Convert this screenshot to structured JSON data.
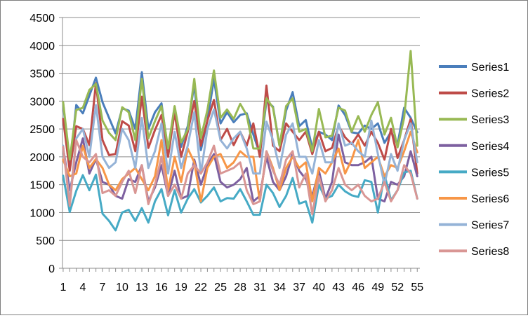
{
  "chart_data": {
    "type": "line",
    "title": "",
    "xlabel": "",
    "ylabel": "",
    "ylim": [
      0,
      4500
    ],
    "yticks": [
      0,
      500,
      1000,
      1500,
      2000,
      2500,
      3000,
      3500,
      4000,
      4500
    ],
    "x": [
      1,
      2,
      3,
      4,
      5,
      6,
      7,
      8,
      9,
      10,
      11,
      12,
      13,
      14,
      15,
      16,
      17,
      18,
      19,
      20,
      21,
      22,
      23,
      24,
      25,
      26,
      27,
      28,
      29,
      30,
      31,
      32,
      33,
      34,
      35,
      36,
      37,
      38,
      39,
      40,
      41,
      42,
      43,
      44,
      45,
      46,
      47,
      48,
      49,
      50,
      51,
      52,
      53,
      54,
      55
    ],
    "xtick_labels": [
      "1",
      "4",
      "7",
      "10",
      "13",
      "16",
      "19",
      "22",
      "25",
      "28",
      "31",
      "34",
      "37",
      "40",
      "43",
      "46",
      "49",
      "52",
      "55"
    ],
    "xtick_values": [
      1,
      4,
      7,
      10,
      13,
      16,
      19,
      22,
      25,
      28,
      31,
      34,
      37,
      40,
      43,
      46,
      49,
      52,
      55
    ],
    "grid": "horizontal",
    "legend": "right",
    "series": [
      {
        "name": "Series1",
        "color": "#4a7ebb",
        "values": [
          2970,
          1800,
          2930,
          2780,
          3100,
          3420,
          2980,
          2700,
          2420,
          2870,
          2830,
          2500,
          3520,
          2500,
          2800,
          2960,
          2100,
          2900,
          2180,
          2550,
          3300,
          2120,
          2650,
          3400,
          2600,
          2800,
          2620,
          2750,
          2780,
          2400,
          2050,
          3000,
          2900,
          2200,
          2830,
          3160,
          2550,
          2660,
          2160,
          2450,
          2400,
          2300,
          2920,
          2750,
          2440,
          2420,
          2560,
          2500,
          2600,
          2250,
          2450,
          2220,
          2880,
          2700,
          2440
        ]
      },
      {
        "name": "Series2",
        "color": "#be4b48",
        "values": [
          2680,
          1750,
          2550,
          2500,
          2210,
          3320,
          2300,
          2030,
          2050,
          2640,
          2560,
          2100,
          3080,
          2160,
          2480,
          2750,
          2000,
          2800,
          2000,
          2450,
          3000,
          2200,
          2650,
          3020,
          2300,
          2500,
          2210,
          2450,
          2200,
          2600,
          2000,
          3280,
          2200,
          2100,
          2600,
          2450,
          2300,
          2450,
          2050,
          2450,
          2100,
          2160,
          2560,
          2350,
          2230,
          2400,
          2200,
          2450,
          2250,
          1950,
          2500,
          1980,
          2300,
          2680,
          1700
        ]
      },
      {
        "name": "Series3",
        "color": "#98b954",
        "values": [
          2980,
          1950,
          2840,
          2880,
          3200,
          3310,
          2650,
          2430,
          2300,
          2890,
          2800,
          2300,
          3400,
          2330,
          2640,
          2910,
          2150,
          2910,
          2260,
          2490,
          3400,
          2340,
          2840,
          3550,
          2700,
          2850,
          2680,
          2950,
          2750,
          2150,
          2150,
          3050,
          2880,
          2200,
          2910,
          3050,
          2450,
          2500,
          2100,
          2860,
          2350,
          2380,
          2880,
          2830,
          2450,
          2730,
          2450,
          2750,
          2980,
          2400,
          2700,
          2170,
          2700,
          3900,
          2200
        ]
      },
      {
        "name": "Series4",
        "color": "#7d60a0",
        "values": [
          2170,
          1400,
          1900,
          2330,
          1700,
          1960,
          1550,
          1500,
          1300,
          1250,
          1600,
          1550,
          1850,
          1200,
          1450,
          1850,
          1300,
          1750,
          1250,
          1300,
          1950,
          1500,
          1850,
          2050,
          1550,
          1450,
          1500,
          1600,
          1800,
          1200,
          1300,
          2000,
          1550,
          1400,
          1650,
          2050,
          1750,
          1600,
          1300,
          1750,
          1250,
          1550,
          2400,
          1900,
          1850,
          1850,
          1900,
          2000,
          1250,
          1200,
          1550,
          1500,
          1650,
          2100,
          1650
        ]
      },
      {
        "name": "Series5",
        "color": "#46aac5",
        "values": [
          1660,
          1010,
          1390,
          1670,
          1400,
          1680,
          980,
          850,
          680,
          1000,
          1050,
          850,
          1080,
          820,
          1200,
          1420,
          950,
          1400,
          1000,
          1250,
          1420,
          1180,
          1300,
          1450,
          1200,
          1260,
          1250,
          1420,
          1200,
          960,
          960,
          1500,
          1350,
          1100,
          1300,
          1620,
          1160,
          1200,
          820,
          1500,
          1250,
          1300,
          1500,
          1380,
          1310,
          1280,
          1580,
          1550,
          1000,
          1680,
          1220,
          1400,
          1720,
          1750,
          1250
        ]
      },
      {
        "name": "Series6",
        "color": "#f79647",
        "values": [
          1950,
          1650,
          1700,
          2200,
          1800,
          1960,
          1800,
          1500,
          1400,
          1600,
          1700,
          1800,
          1600,
          1400,
          1650,
          2300,
          1400,
          2000,
          1550,
          2150,
          1900,
          1200,
          1800,
          2000,
          2050,
          1800,
          1900,
          2100,
          2000,
          2000,
          1200,
          2100,
          1800,
          1400,
          1800,
          2000,
          1800,
          1900,
          1200,
          1800,
          1700,
          1900,
          2150,
          1700,
          1950,
          2300,
          1800,
          1900,
          2000,
          1650,
          1850,
          1800,
          2100,
          2450,
          2080
        ]
      },
      {
        "name": "Series7",
        "color": "#95b3d7",
        "values": [
          2200,
          1180,
          2330,
          2500,
          2000,
          2930,
          2000,
          1800,
          1900,
          2500,
          2300,
          1800,
          2700,
          1800,
          2100,
          2600,
          1700,
          2450,
          1800,
          2200,
          2800,
          1700,
          2500,
          2850,
          2300,
          2150,
          2330,
          2450,
          2150,
          1700,
          1700,
          2630,
          2300,
          1800,
          2400,
          2600,
          2000,
          2000,
          1700,
          2300,
          1900,
          1900,
          2600,
          2200,
          2250,
          2100,
          2000,
          2650,
          2050,
          1500,
          2050,
          1750,
          2300,
          2600,
          1900
        ]
      },
      {
        "name": "Series8",
        "color": "#d99694",
        "values": [
          2180,
          1120,
          2300,
          2000,
          1900,
          2050,
          1350,
          1400,
          1300,
          1550,
          1750,
          1350,
          1850,
          1150,
          1500,
          2000,
          1300,
          1500,
          1250,
          1700,
          1850,
          1700,
          1900,
          2200,
          1700,
          1750,
          1800,
          1900,
          1400,
          1150,
          1200,
          2100,
          1750,
          1500,
          1950,
          2100,
          1450,
          1700,
          970,
          1650,
          1200,
          1400,
          1800,
          1500,
          1400,
          1500,
          1300,
          1200,
          1250,
          1550,
          1200,
          1400,
          1850,
          1700,
          1250
        ]
      }
    ]
  }
}
